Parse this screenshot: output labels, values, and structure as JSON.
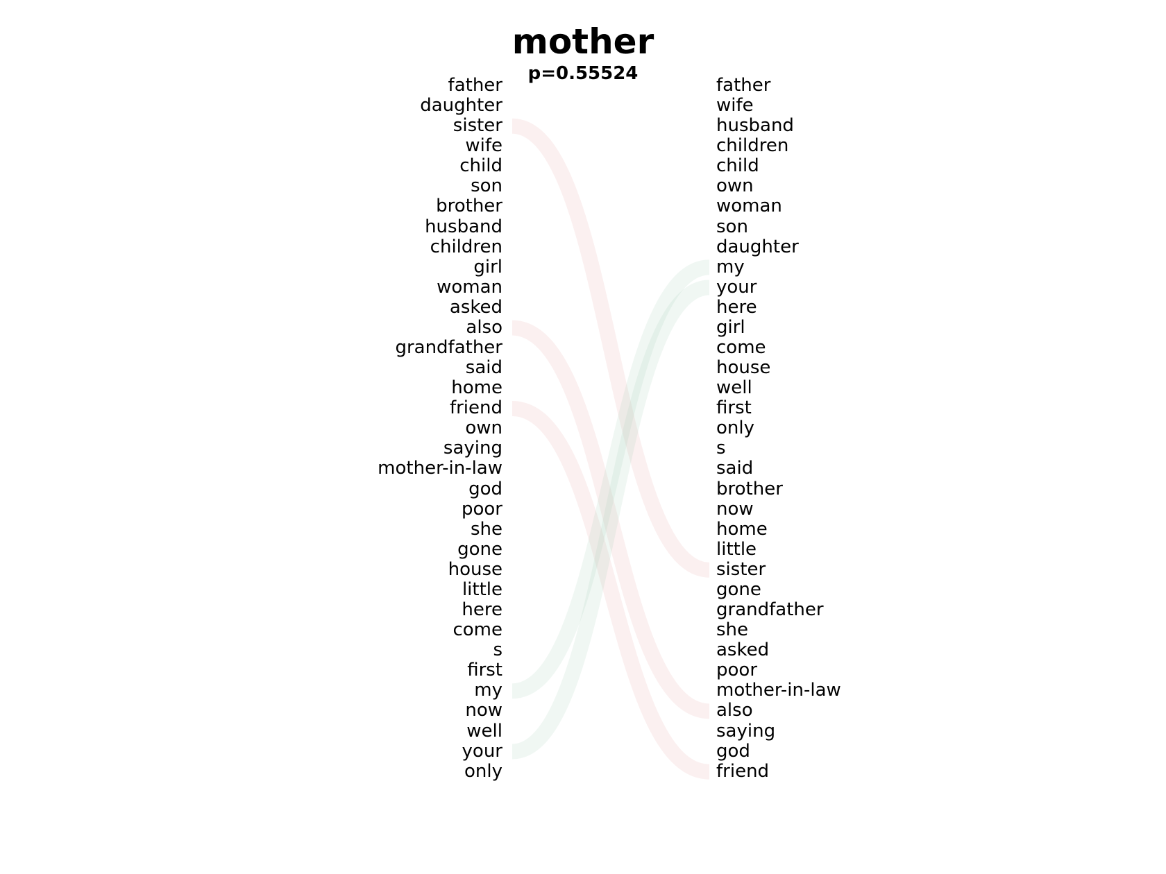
{
  "title": "mother",
  "subtitle": "p=0.55524",
  "left_words": [
    "father",
    "daughter",
    "sister",
    "wife",
    "child",
    "son",
    "brother",
    "husband",
    "children",
    "girl",
    "woman",
    "asked",
    "also",
    "grandfather",
    "said",
    "home",
    "friend",
    "own",
    "saying",
    "mother-in-law",
    "god",
    "poor",
    "she",
    "gone",
    "house",
    "little",
    "here",
    "come",
    "s",
    "first",
    "my",
    "now",
    "well",
    "your",
    "only"
  ],
  "right_words": [
    "father",
    "wife",
    "husband",
    "children",
    "child",
    "own",
    "woman",
    "son",
    "daughter",
    "my",
    "your",
    "here",
    "girl",
    "come",
    "house",
    "well",
    "first",
    "only",
    "s",
    "said",
    "brother",
    "now",
    "home",
    "little",
    "sister",
    "gone",
    "grandfather",
    "she",
    "asked",
    "poor",
    "mother-in-law",
    "also",
    "saying",
    "god",
    "friend"
  ],
  "links": [
    {
      "word": "sister",
      "color": "#e8a0a0"
    },
    {
      "word": "also",
      "color": "#e8a0a0"
    },
    {
      "word": "friend",
      "color": "#e8a0a0"
    },
    {
      "word": "my",
      "color": "#a0cdb4"
    },
    {
      "word": "your",
      "color": "#a0cdb4"
    }
  ]
}
